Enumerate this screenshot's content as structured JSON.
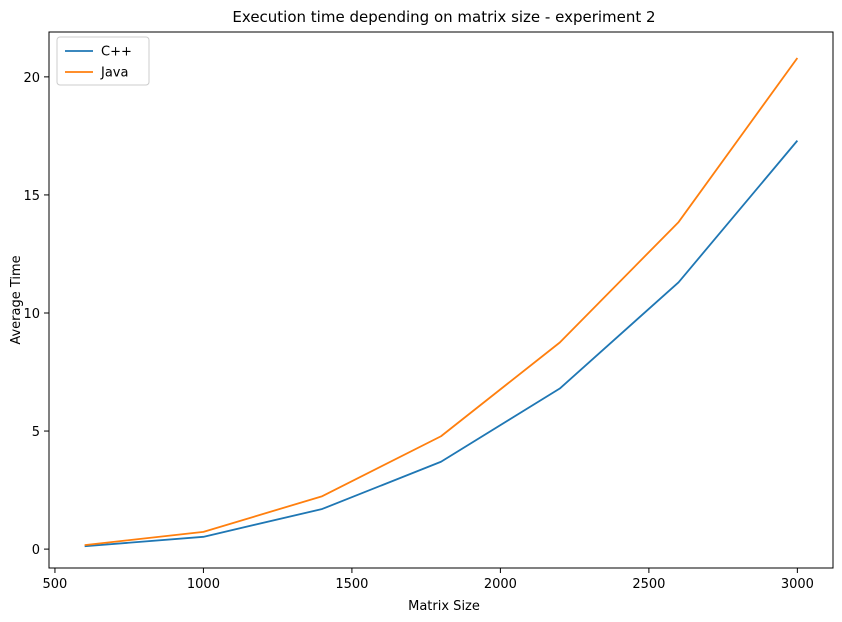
{
  "chart_data": {
    "type": "line",
    "title": "Execution time depending on matrix size - experiment 2",
    "xlabel": "Matrix Size",
    "ylabel": "Average Time",
    "x": [
      600,
      1000,
      1400,
      1800,
      2200,
      2600,
      3000
    ],
    "series": [
      {
        "name": "C++",
        "color": "#1f77b4",
        "values": [
          0.12,
          0.52,
          1.7,
          3.7,
          6.8,
          11.3,
          17.3
        ]
      },
      {
        "name": "Java",
        "color": "#ff7f0e",
        "values": [
          0.17,
          0.73,
          2.24,
          4.78,
          8.75,
          13.85,
          20.8
        ]
      }
    ],
    "xlim": [
      480,
      3120
    ],
    "ylim": [
      -0.8,
      21.9
    ],
    "xticks": [
      500,
      1000,
      1500,
      2000,
      2500,
      3000
    ],
    "yticks": [
      0,
      5,
      10,
      15,
      20
    ],
    "grid": false,
    "legend_position": "top-left"
  }
}
